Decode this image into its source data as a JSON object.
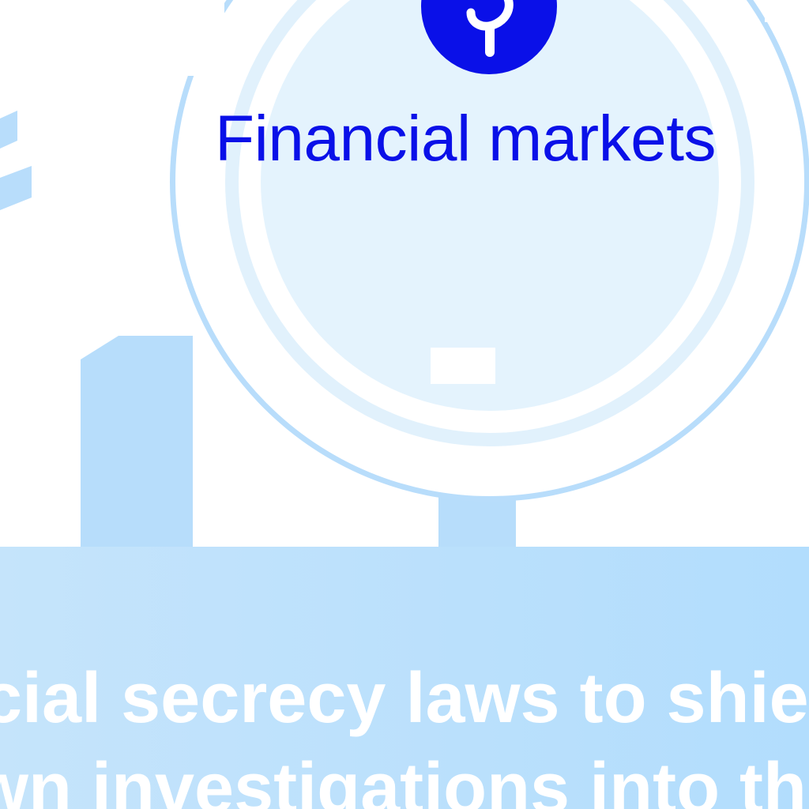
{
  "graphic": {
    "label": "Financial markets",
    "icon": "dollar-coin-icon",
    "colors": {
      "label": "#0a10e8",
      "icon_fill": "#0a10e8",
      "ring_light": "#b8ddfb",
      "disc": "#e4f3fd",
      "caption_band": "#b2ddfd"
    }
  },
  "caption": {
    "line1": "cial secrecy laws to shie",
    "line2": "wn investigations into th"
  }
}
